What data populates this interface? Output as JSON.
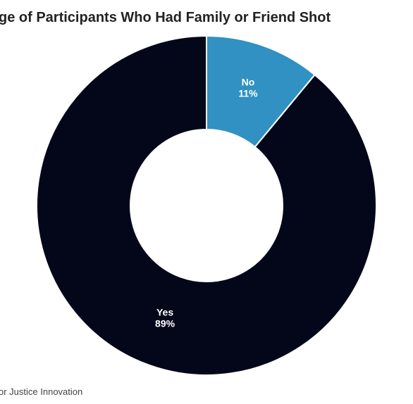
{
  "chart_data": {
    "type": "donut",
    "title": "ge of Participants Who Had Family or Friend Shot",
    "source": "or Justice Innovation",
    "categories": [
      "No",
      "Yes"
    ],
    "values": [
      11,
      89
    ],
    "value_labels": [
      "11%",
      "89%"
    ],
    "colors": [
      "#3191c2",
      "#04061a"
    ]
  }
}
